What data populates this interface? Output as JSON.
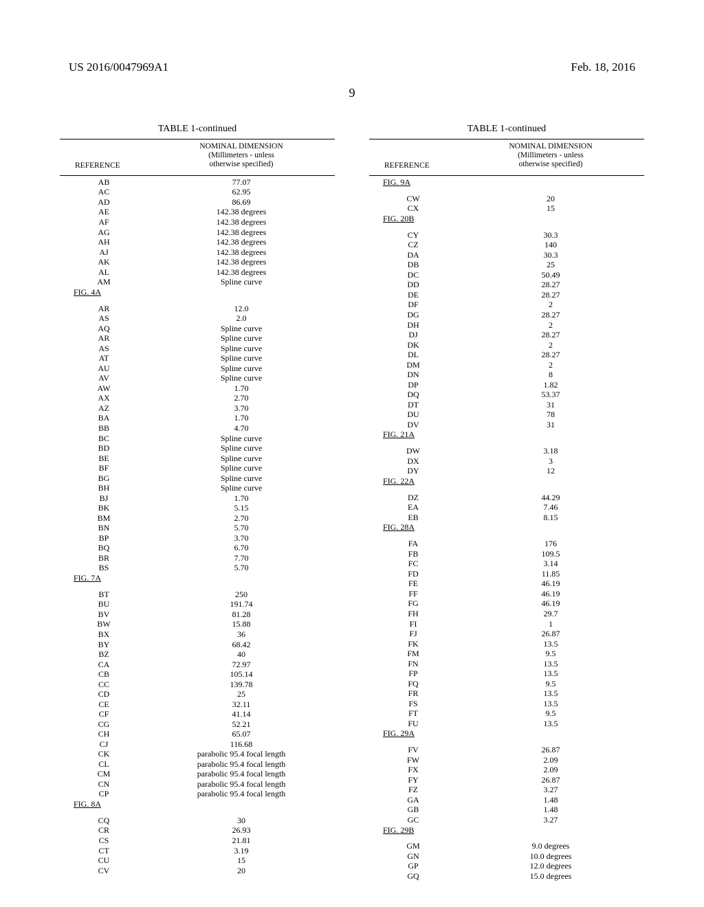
{
  "header": {
    "pub_no": "US 2016/0047969A1",
    "pub_date": "Feb. 18, 2016"
  },
  "page_number": "9",
  "caption": "TABLE 1-continued",
  "col_headers": {
    "ref": "REFERENCE",
    "dim_l1": "NOMINAL DIMENSION",
    "dim_l2": "(Millimeters - unless",
    "dim_l3": "otherwise specified)"
  },
  "left_rows": [
    {
      "ref": "AB",
      "val": "77.07"
    },
    {
      "ref": "AC",
      "val": "62.95"
    },
    {
      "ref": "AD",
      "val": "86.69"
    },
    {
      "ref": "AE",
      "val": "142.38  degrees"
    },
    {
      "ref": "AF",
      "val": "142.38  degrees"
    },
    {
      "ref": "AG",
      "val": "142.38  degrees"
    },
    {
      "ref": "AH",
      "val": "142.38  degrees"
    },
    {
      "ref": "AJ",
      "val": "142.38  degrees"
    },
    {
      "ref": "AK",
      "val": "142.38  degrees"
    },
    {
      "ref": "AL",
      "val": "142.38  degrees"
    },
    {
      "ref": "AM",
      "val": "Spline curve"
    },
    {
      "section": "FIG. 4A"
    },
    {
      "blank": true
    },
    {
      "ref": "AR",
      "val": "12.0"
    },
    {
      "ref": "AS",
      "val": "2.0"
    },
    {
      "ref": "AQ",
      "val": "Spline curve"
    },
    {
      "ref": "AR",
      "val": "Spline curve"
    },
    {
      "ref": "AS",
      "val": "Spline curve"
    },
    {
      "ref": "AT",
      "val": "Spline curve"
    },
    {
      "ref": "AU",
      "val": "Spline curve"
    },
    {
      "ref": "AV",
      "val": "Spline curve"
    },
    {
      "ref": "AW",
      "val": "1.70"
    },
    {
      "ref": "AX",
      "val": "2.70"
    },
    {
      "ref": "AZ",
      "val": "3.70"
    },
    {
      "ref": "BA",
      "val": "1.70"
    },
    {
      "ref": "BB",
      "val": "4.70"
    },
    {
      "ref": "BC",
      "val": "Spline curve"
    },
    {
      "ref": "BD",
      "val": "Spline curve"
    },
    {
      "ref": "BE",
      "val": "Spline curve"
    },
    {
      "ref": "BF",
      "val": "Spline curve"
    },
    {
      "ref": "BG",
      "val": "Spline curve"
    },
    {
      "ref": "BH",
      "val": "Spline curve"
    },
    {
      "ref": "BJ",
      "val": "1.70"
    },
    {
      "ref": "BK",
      "val": "5.15"
    },
    {
      "ref": "BM",
      "val": "2.70"
    },
    {
      "ref": "BN",
      "val": "5.70"
    },
    {
      "ref": "BP",
      "val": "3.70"
    },
    {
      "ref": "BQ",
      "val": "6.70"
    },
    {
      "ref": "BR",
      "val": "7.70"
    },
    {
      "ref": "BS",
      "val": "5.70"
    },
    {
      "section": "FIG. 7A"
    },
    {
      "blank": true
    },
    {
      "ref": "BT",
      "val": "250"
    },
    {
      "ref": "BU",
      "val": "191.74"
    },
    {
      "ref": "BV",
      "val": "81.28"
    },
    {
      "ref": "BW",
      "val": "15.88"
    },
    {
      "ref": "BX",
      "val": "36"
    },
    {
      "ref": "BY",
      "val": "68.42"
    },
    {
      "ref": "BZ",
      "val": "40"
    },
    {
      "ref": "CA",
      "val": "72.97"
    },
    {
      "ref": "CB",
      "val": "105.14"
    },
    {
      "ref": "CC",
      "val": "139.78"
    },
    {
      "ref": "CD",
      "val": "25"
    },
    {
      "ref": "CE",
      "val": "32.11"
    },
    {
      "ref": "CF",
      "val": "41.14"
    },
    {
      "ref": "CG",
      "val": "52.21"
    },
    {
      "ref": "CH",
      "val": "65.07"
    },
    {
      "ref": "CJ",
      "val": "116.68"
    },
    {
      "ref": "CK",
      "val": "parabolic 95.4 focal length"
    },
    {
      "ref": "CL",
      "val": "parabolic 95.4 focal length"
    },
    {
      "ref": "CM",
      "val": "parabolic 95.4 focal length"
    },
    {
      "ref": "CN",
      "val": "parabolic 95.4 focal length"
    },
    {
      "ref": "CP",
      "val": "parabolic 95.4 focal length"
    },
    {
      "section": "FIG. 8A"
    },
    {
      "blank": true
    },
    {
      "ref": "CQ",
      "val": "30"
    },
    {
      "ref": "CR",
      "val": "26.93"
    },
    {
      "ref": "CS",
      "val": "21.81"
    },
    {
      "ref": "CT",
      "val": "3.19"
    },
    {
      "ref": "CU",
      "val": "15"
    },
    {
      "ref": "CV",
      "val": "20"
    }
  ],
  "right_rows": [
    {
      "section": "FIG. 9A"
    },
    {
      "blank": true
    },
    {
      "ref": "CW",
      "val": "20"
    },
    {
      "ref": "CX",
      "val": "15"
    },
    {
      "section": "FIG. 20B"
    },
    {
      "blank": true
    },
    {
      "ref": "CY",
      "val": "30.3"
    },
    {
      "ref": "CZ",
      "val": "140"
    },
    {
      "ref": "DA",
      "val": "30.3"
    },
    {
      "ref": "DB",
      "val": "25"
    },
    {
      "ref": "DC",
      "val": "50.49"
    },
    {
      "ref": "DD",
      "val": "28.27"
    },
    {
      "ref": "DE",
      "val": "28.27"
    },
    {
      "ref": "DF",
      "val": "2"
    },
    {
      "ref": "DG",
      "val": "28.27"
    },
    {
      "ref": "DH",
      "val": "2"
    },
    {
      "ref": "DJ",
      "val": "28.27"
    },
    {
      "ref": "DK",
      "val": "2"
    },
    {
      "ref": "DL",
      "val": "28.27"
    },
    {
      "ref": "DM",
      "val": "2"
    },
    {
      "ref": "DN",
      "val": "8"
    },
    {
      "ref": "DP",
      "val": "1.82"
    },
    {
      "ref": "DQ",
      "val": "53.37"
    },
    {
      "ref": "DT",
      "val": "31"
    },
    {
      "ref": "DU",
      "val": "78"
    },
    {
      "ref": "DV",
      "val": "31"
    },
    {
      "section": "FIG. 21A"
    },
    {
      "blank": true
    },
    {
      "ref": "DW",
      "val": "3.18"
    },
    {
      "ref": "DX",
      "val": "3"
    },
    {
      "ref": "DY",
      "val": "12"
    },
    {
      "section": "FIG. 22A"
    },
    {
      "blank": true
    },
    {
      "ref": "DZ",
      "val": "44.29"
    },
    {
      "ref": "EA",
      "val": "7.46"
    },
    {
      "ref": "EB",
      "val": "8.15"
    },
    {
      "section": "FIG. 28A"
    },
    {
      "blank": true
    },
    {
      "ref": "FA",
      "val": "176"
    },
    {
      "ref": "FB",
      "val": "109.5"
    },
    {
      "ref": "FC",
      "val": "3.14"
    },
    {
      "ref": "FD",
      "val": "11.85"
    },
    {
      "ref": "FE",
      "val": "46.19"
    },
    {
      "ref": "FF",
      "val": "46.19"
    },
    {
      "ref": "FG",
      "val": "46.19"
    },
    {
      "ref": "FH",
      "val": "29.7"
    },
    {
      "ref": "FI",
      "val": "1"
    },
    {
      "ref": "FJ",
      "val": "26.87"
    },
    {
      "ref": "FK",
      "val": "13.5"
    },
    {
      "ref": "FM",
      "val": "9.5"
    },
    {
      "ref": "FN",
      "val": "13.5"
    },
    {
      "ref": "FP",
      "val": "13.5"
    },
    {
      "ref": "FQ",
      "val": "9.5"
    },
    {
      "ref": "FR",
      "val": "13.5"
    },
    {
      "ref": "FS",
      "val": "13.5"
    },
    {
      "ref": "FT",
      "val": "9.5"
    },
    {
      "ref": "FU",
      "val": "13.5"
    },
    {
      "section": "FIG. 29A"
    },
    {
      "blank": true
    },
    {
      "ref": "FV",
      "val": "26.87"
    },
    {
      "ref": "FW",
      "val": "2.09"
    },
    {
      "ref": "FX",
      "val": "2.09"
    },
    {
      "ref": "FY",
      "val": "26.87"
    },
    {
      "ref": "FZ",
      "val": "3.27"
    },
    {
      "ref": "GA",
      "val": "1.48"
    },
    {
      "ref": "GB",
      "val": "1.48"
    },
    {
      "ref": "GC",
      "val": "3.27"
    },
    {
      "section": "FIG. 29B"
    },
    {
      "blank": true
    },
    {
      "ref": "GM",
      "val": "9.0  degrees"
    },
    {
      "ref": "GN",
      "val": "10.0  degrees"
    },
    {
      "ref": "GP",
      "val": "12.0  degrees"
    },
    {
      "ref": "GQ",
      "val": "15.0  degrees"
    }
  ]
}
